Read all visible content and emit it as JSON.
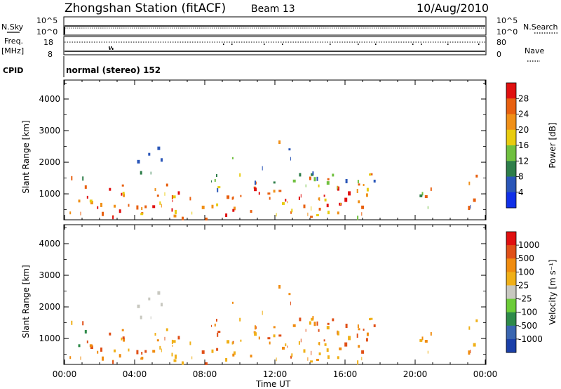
{
  "header": {
    "station": "Zhongshan Station (fitACF)",
    "beam": "Beam 13",
    "date": "10/Aug/2010"
  },
  "panels": {
    "nsky": {
      "label": "N.Sky",
      "left_ticks": [
        "10^5",
        "10^0"
      ],
      "right_label": "N.Search",
      "right_ticks": [
        "10^5",
        "10^0"
      ]
    },
    "freq": {
      "label_line1": "Freq.",
      "label_line2": "[MHz]",
      "left_ticks": [
        "18",
        "8"
      ],
      "right_label": "Nave",
      "right_ticks": [
        "80",
        "0"
      ]
    },
    "cpid": {
      "label": "CPID",
      "text": "normal (stereo) 152"
    }
  },
  "chart_data": [
    {
      "type": "heatmap",
      "title": "",
      "ylabel": "Slant Range [km]",
      "ylim": [
        180,
        4600
      ],
      "yticks": [
        "1000",
        "2000",
        "3000",
        "4000"
      ],
      "colorbar": {
        "label": "Power [dB]",
        "ticks": [
          "4",
          "8",
          "12",
          "16",
          "20",
          "24",
          "28"
        ],
        "colors": [
          "#1030e8",
          "#2a56b8",
          "#2e7e4a",
          "#70c040",
          "#e8cc10",
          "#f09018",
          "#e86010",
          "#e01010"
        ]
      }
    },
    {
      "type": "heatmap",
      "title": "",
      "xlabel": "Time UT",
      "xticks": [
        "00:00",
        "04:00",
        "08:00",
        "12:00",
        "16:00",
        "20:00",
        "00:00"
      ],
      "ylabel": "Slant Range [km]",
      "ylim": [
        180,
        4600
      ],
      "yticks": [
        "1000",
        "2000",
        "3000",
        "4000"
      ],
      "colorbar": {
        "label": "Velocity [m s⁻¹]",
        "ticks": [
          "1000",
          "500",
          "100",
          "25",
          "-25",
          "-100",
          "-500",
          "-1000"
        ],
        "colors": [
          "#1a3fa8",
          "#3a66b0",
          "#2e8a4a",
          "#6ccc38",
          "#c8c8c0",
          "#f0b018",
          "#f08c10",
          "#e05018",
          "#e01010"
        ]
      }
    }
  ]
}
